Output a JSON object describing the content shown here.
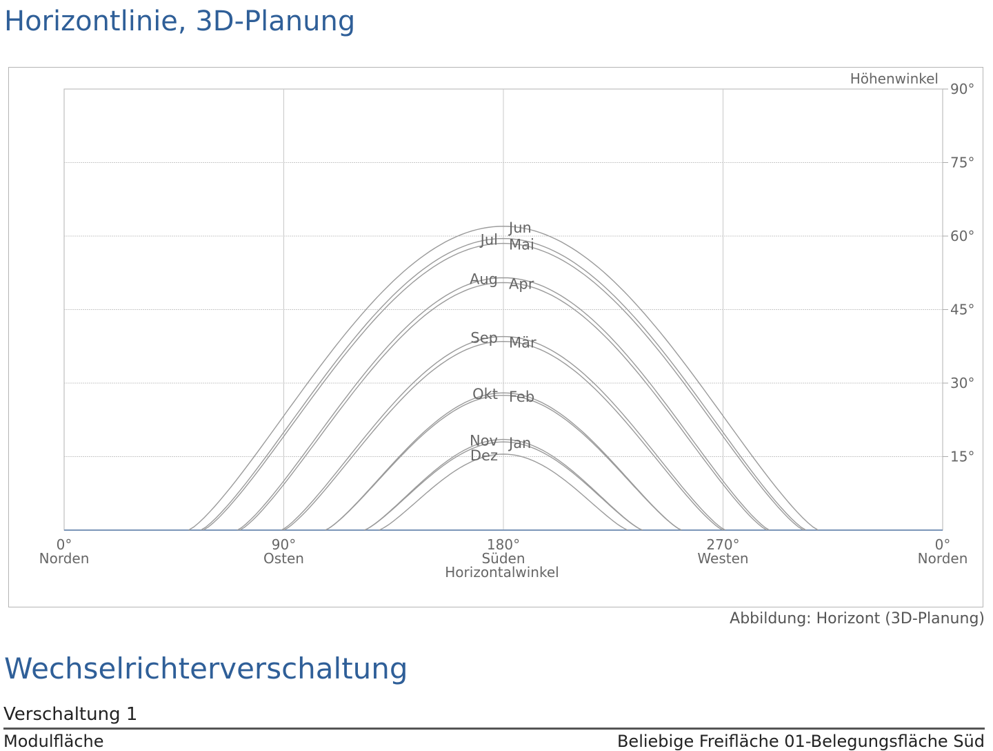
{
  "headings": {
    "horizon": "Horizontlinie, 3D-Planung",
    "inverter": "Wechselrichterverschaltung"
  },
  "caption": "Abbildung: Horizont (3D-Planung)",
  "subsection": "Verschaltung 1",
  "table": {
    "label": "Modulfläche",
    "value": "Beliebige Freifläche 01-Belegungsfläche Süd"
  },
  "chart_data": {
    "type": "line",
    "xlabel": "Horizontalwinkel",
    "ylabel": "Höhenwinkel",
    "xlim": [
      0,
      360
    ],
    "ylim": [
      0,
      90
    ],
    "grid": true,
    "x_ticks": [
      {
        "value": 0,
        "deg": "0°",
        "dir": "Norden"
      },
      {
        "value": 90,
        "deg": "90°",
        "dir": "Osten"
      },
      {
        "value": 180,
        "deg": "180°",
        "dir": "Süden"
      },
      {
        "value": 270,
        "deg": "270°",
        "dir": "Westen"
      },
      {
        "value": 360,
        "deg": "0°",
        "dir": "Norden"
      }
    ],
    "y_ticks": [
      {
        "value": 15,
        "label": "15°"
      },
      {
        "value": 30,
        "label": "30°"
      },
      {
        "value": 45,
        "label": "45°"
      },
      {
        "value": 60,
        "label": "60°"
      },
      {
        "value": 75,
        "label": "75°"
      },
      {
        "value": 90,
        "label": "90°"
      }
    ],
    "series": [
      {
        "name": "Jun",
        "peak_elevation": 62,
        "azimuth_range": [
          51,
          309
        ],
        "label_side": "right"
      },
      {
        "name": "Jul",
        "peak_elevation": 59.5,
        "azimuth_range": [
          56,
          304
        ],
        "label_side": "left"
      },
      {
        "name": "Mai",
        "peak_elevation": 58.5,
        "azimuth_range": [
          57,
          303
        ],
        "label_side": "right"
      },
      {
        "name": "Aug",
        "peak_elevation": 51.5,
        "azimuth_range": [
          71,
          289
        ],
        "label_side": "left"
      },
      {
        "name": "Apr",
        "peak_elevation": 50.5,
        "azimuth_range": [
          72,
          288
        ],
        "label_side": "right"
      },
      {
        "name": "Sep",
        "peak_elevation": 39.5,
        "azimuth_range": [
          89,
          271
        ],
        "label_side": "left"
      },
      {
        "name": "Mär",
        "peak_elevation": 38.5,
        "azimuth_range": [
          90,
          270
        ],
        "label_side": "right"
      },
      {
        "name": "Okt",
        "peak_elevation": 28,
        "azimuth_range": [
          107,
          253
        ],
        "label_side": "left"
      },
      {
        "name": "Feb",
        "peak_elevation": 27.5,
        "azimuth_range": [
          107,
          253
        ],
        "label_side": "right"
      },
      {
        "name": "Nov",
        "peak_elevation": 18.5,
        "azimuth_range": [
          123,
          237
        ],
        "label_side": "left"
      },
      {
        "name": "Jan",
        "peak_elevation": 18,
        "azimuth_range": [
          123,
          237
        ],
        "label_side": "right"
      },
      {
        "name": "Dez",
        "peak_elevation": 15.5,
        "azimuth_range": [
          129,
          231
        ],
        "label_side": "left"
      }
    ]
  }
}
